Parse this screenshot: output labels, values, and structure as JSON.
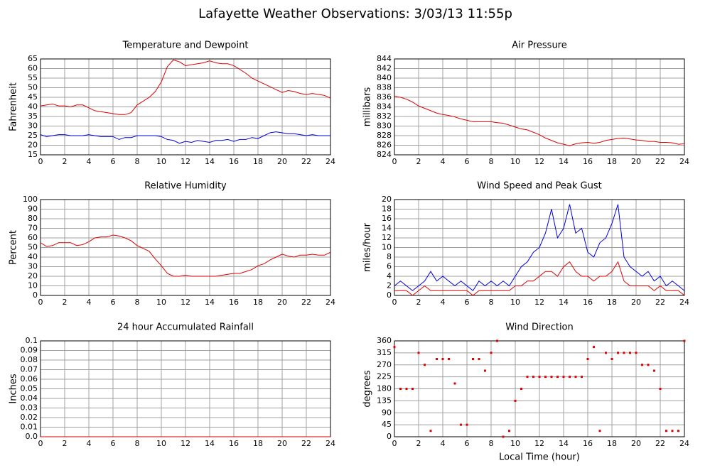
{
  "title": "Lafayette Weather Observations: 3/03/13 11:55p",
  "chart_data": [
    {
      "type": "line",
      "title": "Temperature and Dewpoint",
      "ylabel": "Fahrenheit",
      "x": [
        0,
        0.5,
        1,
        1.5,
        2,
        2.5,
        3,
        3.5,
        4,
        4.5,
        5,
        5.5,
        6,
        6.5,
        7,
        7.5,
        8,
        8.5,
        9,
        9.5,
        10,
        10.5,
        11,
        11.5,
        12,
        12.5,
        13,
        13.5,
        14,
        14.5,
        15,
        15.5,
        16,
        16.5,
        17,
        17.5,
        18,
        18.5,
        19,
        19.5,
        20,
        20.5,
        21,
        21.5,
        22,
        22.5,
        23,
        23.5,
        24
      ],
      "series": [
        {
          "color": "#e00000",
          "values": [
            40.5,
            41,
            41.5,
            40.5,
            40.5,
            40,
            41,
            41,
            39.5,
            38,
            37.5,
            37,
            36.5,
            36,
            36,
            37,
            41,
            43,
            45,
            48,
            53,
            61,
            64.5,
            63.5,
            61.5,
            62,
            62.5,
            63,
            64,
            63,
            62.5,
            62.5,
            61.5,
            59.5,
            57.5,
            55,
            53.5,
            52,
            50.5,
            49,
            47.5,
            48.5,
            48,
            47,
            46.5,
            47,
            46.5,
            46,
            44.5
          ]
        },
        {
          "color": "#0000e0",
          "values": [
            25.5,
            24.5,
            25,
            25.5,
            25.5,
            25,
            25,
            25,
            25.5,
            25,
            24.5,
            24.5,
            24.5,
            23,
            24,
            24,
            25,
            25,
            25,
            25,
            24.5,
            23,
            22.5,
            21,
            22,
            21.5,
            22.5,
            22,
            21.5,
            22.5,
            22.5,
            23,
            22,
            23,
            23,
            24,
            23.5,
            25,
            26.5,
            27,
            26.5,
            26,
            26,
            25.5,
            25,
            25.5,
            25,
            25,
            25
          ]
        }
      ],
      "xlim": [
        0,
        24
      ],
      "xticks": [
        0,
        2,
        4,
        6,
        8,
        10,
        12,
        14,
        16,
        18,
        20,
        22,
        24
      ],
      "ylim": [
        15,
        65
      ],
      "yticks": [
        15,
        20,
        25,
        30,
        35,
        40,
        45,
        50,
        55,
        60,
        65
      ],
      "grid": true
    },
    {
      "type": "line",
      "title": "Air Pressure",
      "ylabel": "millibars",
      "x": [
        0,
        0.5,
        1,
        1.5,
        2,
        2.5,
        3,
        3.5,
        4,
        4.5,
        5,
        5.5,
        6,
        6.5,
        7,
        7.5,
        8,
        8.5,
        9,
        9.5,
        10,
        10.5,
        11,
        11.5,
        12,
        12.5,
        13,
        13.5,
        14,
        14.5,
        15,
        15.5,
        16,
        16.5,
        17,
        17.5,
        18,
        18.5,
        19,
        19.5,
        20,
        20.5,
        21,
        21.5,
        22,
        22.5,
        23,
        23.5,
        24
      ],
      "series": [
        {
          "color": "#e00000",
          "values": [
            836.2,
            836,
            835.6,
            835,
            834.2,
            833.7,
            833.2,
            832.7,
            832.4,
            832.2,
            831.9,
            831.5,
            831.2,
            830.9,
            830.9,
            830.9,
            830.9,
            830.7,
            830.6,
            830.2,
            829.8,
            829.4,
            829.2,
            828.7,
            828.2,
            827.5,
            827,
            826.5,
            826.2,
            825.9,
            826.3,
            826.5,
            826.6,
            826.4,
            826.6,
            827,
            827.2,
            827.4,
            827.5,
            827.3,
            827.1,
            827,
            826.8,
            826.8,
            826.6,
            826.6,
            826.5,
            826.2,
            826.3
          ]
        }
      ],
      "xlim": [
        0,
        24
      ],
      "xticks": [
        0,
        2,
        4,
        6,
        8,
        10,
        12,
        14,
        16,
        18,
        20,
        22,
        24
      ],
      "ylim": [
        824,
        844
      ],
      "yticks": [
        824,
        826,
        828,
        830,
        832,
        834,
        836,
        838,
        840,
        842,
        844
      ],
      "grid": true
    },
    {
      "type": "line",
      "title": "Relative Humidity",
      "ylabel": "Percent",
      "x": [
        0,
        0.5,
        1,
        1.5,
        2,
        2.5,
        3,
        3.5,
        4,
        4.5,
        5,
        5.5,
        6,
        6.5,
        7,
        7.5,
        8,
        8.5,
        9,
        9.5,
        10,
        10.5,
        11,
        11.5,
        12,
        12.5,
        13,
        13.5,
        14,
        14.5,
        15,
        15.5,
        16,
        16.5,
        17,
        17.5,
        18,
        18.5,
        19,
        19.5,
        20,
        20.5,
        21,
        21.5,
        22,
        22.5,
        23,
        23.5,
        24
      ],
      "series": [
        {
          "color": "#e00000",
          "values": [
            55,
            51,
            52,
            55,
            55,
            55,
            52,
            53,
            56,
            60,
            61,
            61,
            63,
            62,
            60,
            57,
            52,
            49,
            46,
            38,
            31,
            23,
            20,
            20,
            21,
            20,
            20,
            20,
            20,
            20,
            21,
            22,
            23,
            23,
            25,
            27,
            31,
            33,
            37,
            40,
            43,
            41,
            40,
            42,
            42,
            43,
            42,
            42,
            45
          ]
        }
      ],
      "xlim": [
        0,
        24
      ],
      "xticks": [
        0,
        2,
        4,
        6,
        8,
        10,
        12,
        14,
        16,
        18,
        20,
        22,
        24
      ],
      "ylim": [
        0,
        100
      ],
      "yticks": [
        0,
        10,
        20,
        30,
        40,
        50,
        60,
        70,
        80,
        90,
        100
      ],
      "grid": true
    },
    {
      "type": "line",
      "title": "Wind Speed and Peak Gust",
      "ylabel": "miles/hour",
      "x": [
        0,
        0.5,
        1,
        1.5,
        2,
        2.5,
        3,
        3.5,
        4,
        4.5,
        5,
        5.5,
        6,
        6.5,
        7,
        7.5,
        8,
        8.5,
        9,
        9.5,
        10,
        10.5,
        11,
        11.5,
        12,
        12.5,
        13,
        13.5,
        14,
        14.5,
        15,
        15.5,
        16,
        16.5,
        17,
        17.5,
        18,
        18.5,
        19,
        19.5,
        20,
        20.5,
        21,
        21.5,
        22,
        22.5,
        23,
        23.5,
        24
      ],
      "series": [
        {
          "color": "#0000e0",
          "values": [
            2,
            3,
            2,
            1,
            2,
            3,
            5,
            3,
            4,
            3,
            2,
            3,
            2,
            1,
            3,
            2,
            3,
            2,
            3,
            2,
            4,
            6,
            7,
            9,
            10,
            13,
            18,
            12,
            14,
            19,
            13,
            14,
            9,
            8,
            11,
            12,
            15,
            19,
            8,
            6,
            5,
            4,
            5,
            3,
            4,
            2,
            3,
            2,
            1
          ]
        },
        {
          "color": "#e00000",
          "values": [
            1,
            1,
            1,
            0,
            1,
            2,
            1,
            1,
            1,
            1,
            1,
            1,
            1,
            0,
            1,
            1,
            1,
            1,
            1,
            1,
            2,
            2,
            3,
            3,
            4,
            5,
            5,
            4,
            6,
            7,
            5,
            4,
            4,
            3,
            4,
            4,
            5,
            7,
            3,
            2,
            2,
            2,
            2,
            1,
            2,
            1,
            1,
            1,
            0
          ]
        }
      ],
      "xlim": [
        0,
        24
      ],
      "xticks": [
        0,
        2,
        4,
        6,
        8,
        10,
        12,
        14,
        16,
        18,
        20,
        22,
        24
      ],
      "ylim": [
        0,
        20
      ],
      "yticks": [
        0,
        2,
        4,
        6,
        8,
        10,
        12,
        14,
        16,
        18,
        20
      ],
      "grid": true
    },
    {
      "type": "line",
      "title": "24 hour Accumulated Rainfall",
      "ylabel": "Inches",
      "x": [
        0,
        24
      ],
      "series": [
        {
          "color": "#e00000",
          "values": [
            0,
            0
          ]
        }
      ],
      "xlim": [
        0,
        24
      ],
      "xticks": [
        0,
        2,
        4,
        6,
        8,
        10,
        12,
        14,
        16,
        18,
        20,
        22,
        24
      ],
      "ylim": [
        0,
        0.1
      ],
      "yticks": [
        {
          "value": 0,
          "label": "0.0"
        },
        0.01,
        0.02,
        0.03,
        0.04,
        0.05,
        0.06,
        0.07,
        0.08,
        0.09,
        0.1
      ],
      "grid": true
    },
    {
      "type": "scatter",
      "title": "Wind Direction",
      "ylabel": "degrees",
      "xlabel": "Local Time (hour)",
      "x": [
        0,
        0.5,
        1,
        1.5,
        2,
        2.5,
        3,
        3.5,
        4,
        4.5,
        5,
        5.5,
        6,
        6.5,
        7,
        7.5,
        8,
        8.5,
        9,
        9.5,
        10,
        10.5,
        11,
        11.5,
        12,
        12.5,
        13,
        13.5,
        14,
        14.5,
        15,
        15.5,
        16,
        16.5,
        17,
        17.5,
        18,
        18.5,
        19,
        19.5,
        20,
        20.5,
        21,
        21.5,
        22,
        22.5,
        23,
        23.5,
        24
      ],
      "values": [
        337,
        180,
        180,
        180,
        315,
        270,
        22,
        292,
        292,
        292,
        200,
        45,
        45,
        292,
        292,
        248,
        315,
        360,
        0,
        22,
        135,
        180,
        225,
        225,
        225,
        225,
        225,
        225,
        225,
        225,
        225,
        225,
        292,
        337,
        22,
        315,
        292,
        315,
        315,
        315,
        315,
        270,
        270,
        248,
        180,
        22,
        22,
        22,
        360
      ],
      "color": "#e00000",
      "xlim": [
        0,
        24
      ],
      "xticks": [
        0,
        2,
        4,
        6,
        8,
        10,
        12,
        14,
        16,
        18,
        20,
        22,
        24
      ],
      "ylim": [
        0,
        360
      ],
      "yticks": [
        0,
        45,
        90,
        135,
        180,
        225,
        270,
        315,
        360
      ],
      "grid": true
    }
  ]
}
